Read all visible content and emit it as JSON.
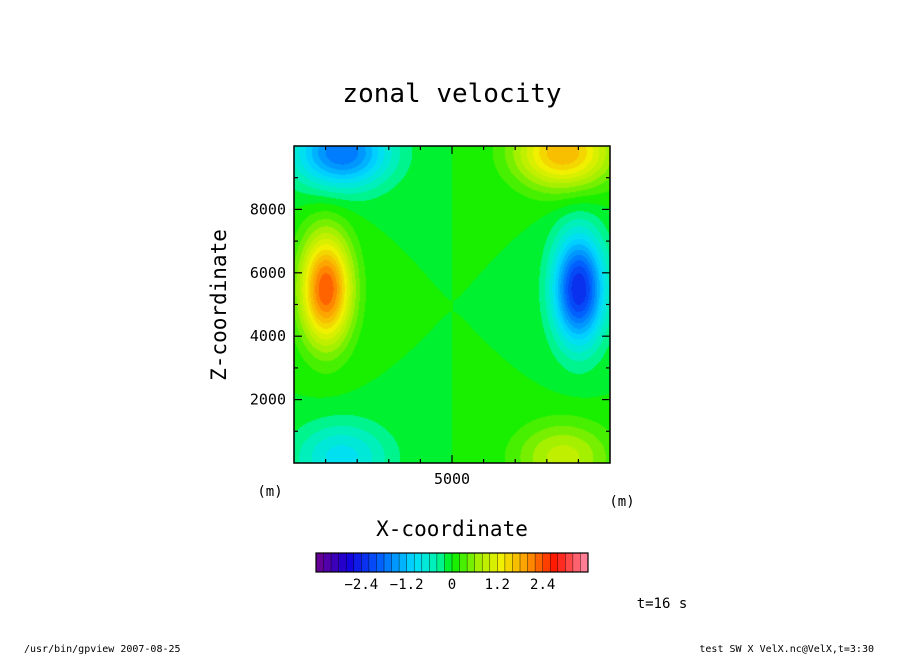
{
  "chart_data": {
    "type": "heatmap",
    "title": "zonal velocity",
    "xlabel": "X-coordinate",
    "ylabel": "Z-coordinate",
    "x_unit": "(m)",
    "y_unit": "(m)",
    "xlim": [
      0,
      10000
    ],
    "ylim": [
      0,
      10000
    ],
    "x_ticks": [
      5000
    ],
    "y_ticks": [
      2000,
      4000,
      6000,
      8000
    ],
    "x_tick_labels": [
      "5000"
    ],
    "y_tick_labels": [
      "2000",
      "4000",
      "6000",
      "8000"
    ],
    "colorbar": {
      "min": -3.6,
      "max": 3.6,
      "step": 0.2,
      "ticks": [
        -2.4,
        -1.2,
        0,
        1.2,
        2.4
      ],
      "tick_labels": [
        "−2.4",
        "−1.2",
        "0",
        "1.2",
        "2.4"
      ]
    },
    "features": [
      {
        "x": 1000,
        "z": 5500,
        "value": 2.4
      },
      {
        "x": 9000,
        "z": 5500,
        "value": -2.4
      },
      {
        "x": 1500,
        "z": 9800,
        "value": -1.8
      },
      {
        "x": 8500,
        "z": 9800,
        "value": 1.8
      },
      {
        "x": 1500,
        "z": 200,
        "value": -0.9
      },
      {
        "x": 8500,
        "z": 200,
        "value": 0.9
      }
    ],
    "time_label": "t=16 s"
  },
  "footer": {
    "left": "/usr/bin/gpview   2007-08-25",
    "right": "test_SW_X_VelX.nc@VelX,t=3:30"
  }
}
